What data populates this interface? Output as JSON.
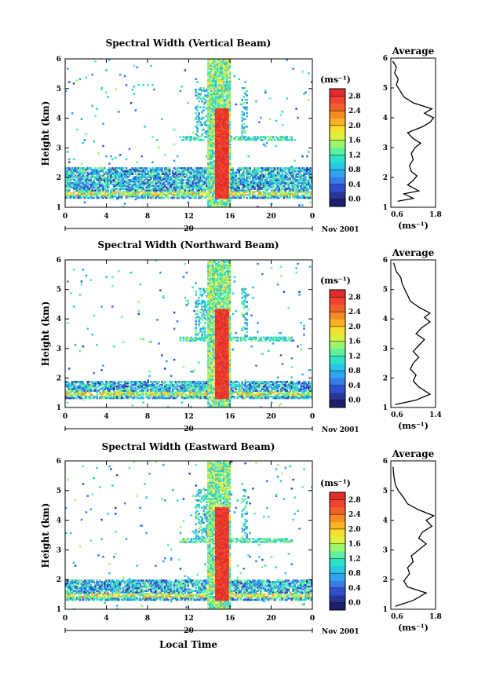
{
  "figure": {
    "xlabel": "Local Time",
    "colorbar": {
      "label": "(ms⁻¹)",
      "ticks": [
        "0.0",
        "0.4",
        "0.8",
        "1.2",
        "1.6",
        "2.0",
        "2.4",
        "2.8"
      ],
      "colors": [
        "#1b1f6e",
        "#283593",
        "#2f4fcf",
        "#3a79e8",
        "#2fa4ef",
        "#27c8e6",
        "#2fe0c8",
        "#5cf0a0",
        "#9cf56a",
        "#d8f241",
        "#f6e02b",
        "#f8b224",
        "#f68a23",
        "#f2602a",
        "#ef4231",
        "#e32c2c"
      ]
    },
    "date_label": "Nov 2001",
    "day_label": "20"
  },
  "chart_data": [
    {
      "type": "heatmap",
      "title": "Spectral Width (Vertical Beam)",
      "ylabel": "Height (km)",
      "xlabel": "",
      "x_ticks": [
        "0",
        "4",
        "8",
        "12",
        "16",
        "20",
        "0"
      ],
      "xlim": [
        0,
        24
      ],
      "y_ticks": [
        "1",
        "2",
        "3",
        "4",
        "5",
        "6"
      ],
      "ylim": [
        1,
        6
      ],
      "clim": [
        0,
        3.0
      ],
      "date_label": "Nov 2001",
      "features": {
        "low_layer": [
          1.3,
          2.3
        ],
        "mid_layer": 3.3,
        "upper_band": [
          13.7,
          16.0
        ],
        "core_band": [
          14.5,
          15.8
        ],
        "core_height": [
          1.3,
          4.3
        ]
      },
      "profile": {
        "title": "Average",
        "xlim": [
          0.6,
          1.8
        ],
        "x_ticks": [
          "0.6",
          "1.8"
        ],
        "xunit": "(ms⁻¹)",
        "points": [
          [
            0.78,
            1.2
          ],
          [
            1.2,
            1.3
          ],
          [
            0.95,
            1.45
          ],
          [
            1.35,
            1.55
          ],
          [
            1.05,
            1.75
          ],
          [
            1.2,
            1.9
          ],
          [
            1.3,
            2.05
          ],
          [
            1.15,
            2.2
          ],
          [
            1.1,
            2.4
          ],
          [
            1.2,
            2.6
          ],
          [
            1.15,
            2.8
          ],
          [
            1.25,
            3.0
          ],
          [
            1.4,
            3.15
          ],
          [
            1.2,
            3.3
          ],
          [
            1.05,
            3.5
          ],
          [
            1.45,
            3.7
          ],
          [
            1.65,
            3.85
          ],
          [
            1.75,
            4.0
          ],
          [
            1.5,
            4.15
          ],
          [
            1.7,
            4.3
          ],
          [
            1.2,
            4.5
          ],
          [
            0.95,
            4.7
          ],
          [
            0.85,
            4.9
          ],
          [
            0.75,
            5.1
          ],
          [
            0.8,
            5.3
          ],
          [
            0.7,
            5.5
          ],
          [
            0.75,
            5.7
          ],
          [
            0.65,
            5.9
          ]
        ]
      }
    },
    {
      "type": "heatmap",
      "title": "Spectral Width (Northward Beam)",
      "ylabel": "Height (km)",
      "xlabel": "",
      "x_ticks": [
        "0",
        "4",
        "8",
        "12",
        "16",
        "20",
        "0"
      ],
      "xlim": [
        0,
        24
      ],
      "y_ticks": [
        "1",
        "2",
        "3",
        "4",
        "5",
        "6"
      ],
      "ylim": [
        1,
        6
      ],
      "clim": [
        0,
        3.0
      ],
      "date_label": "Nov 2001",
      "features": {
        "low_layer": [
          1.3,
          1.9
        ],
        "mid_layer": 3.3,
        "upper_band": [
          13.7,
          16.0
        ],
        "core_band": [
          14.5,
          15.8
        ],
        "core_height": [
          1.3,
          4.3
        ]
      },
      "profile": {
        "title": "Average",
        "xlim": [
          0.6,
          1.4
        ],
        "x_ticks": [
          "0.6",
          "1.4"
        ],
        "xunit": "(ms⁻¹)",
        "points": [
          [
            0.68,
            1.1
          ],
          [
            1.05,
            1.25
          ],
          [
            1.3,
            1.45
          ],
          [
            1.1,
            1.7
          ],
          [
            1.0,
            1.9
          ],
          [
            1.05,
            2.1
          ],
          [
            0.95,
            2.3
          ],
          [
            1.0,
            2.5
          ],
          [
            1.1,
            2.7
          ],
          [
            1.0,
            2.9
          ],
          [
            1.1,
            3.1
          ],
          [
            1.2,
            3.3
          ],
          [
            1.05,
            3.5
          ],
          [
            1.15,
            3.7
          ],
          [
            1.3,
            3.9
          ],
          [
            1.2,
            4.05
          ],
          [
            1.3,
            4.2
          ],
          [
            1.1,
            4.4
          ],
          [
            0.95,
            4.6
          ],
          [
            0.9,
            4.8
          ],
          [
            0.85,
            5.0
          ],
          [
            0.8,
            5.2
          ],
          [
            0.78,
            5.4
          ],
          [
            0.7,
            5.6
          ],
          [
            0.65,
            5.9
          ]
        ]
      }
    },
    {
      "type": "heatmap",
      "title": "Spectral Width (Eastward Beam)",
      "ylabel": "Height (km)",
      "xlabel": "Local Time",
      "x_ticks": [
        "0",
        "4",
        "8",
        "12",
        "16",
        "20",
        "0"
      ],
      "xlim": [
        0,
        24
      ],
      "y_ticks": [
        "1",
        "2",
        "3",
        "4",
        "5",
        "6"
      ],
      "ylim": [
        1,
        6
      ],
      "clim": [
        0,
        3.0
      ],
      "date_label": "Nov 2001",
      "features": {
        "low_layer": [
          1.3,
          2.0
        ],
        "mid_layer": 3.3,
        "upper_band": [
          13.7,
          16.0
        ],
        "core_band": [
          14.5,
          15.8
        ],
        "core_height": [
          1.3,
          4.4
        ]
      },
      "profile": {
        "title": "Average",
        "xlim": [
          0.6,
          1.8
        ],
        "x_ticks": [
          "0.6",
          "1.8"
        ],
        "xunit": "(ms⁻¹)",
        "points": [
          [
            0.72,
            1.1
          ],
          [
            1.2,
            1.3
          ],
          [
            1.55,
            1.55
          ],
          [
            1.05,
            1.75
          ],
          [
            0.95,
            1.95
          ],
          [
            1.1,
            2.2
          ],
          [
            1.05,
            2.4
          ],
          [
            1.2,
            2.6
          ],
          [
            1.15,
            2.8
          ],
          [
            1.35,
            3.0
          ],
          [
            1.55,
            3.2
          ],
          [
            1.35,
            3.4
          ],
          [
            1.45,
            3.6
          ],
          [
            1.7,
            3.8
          ],
          [
            1.55,
            4.0
          ],
          [
            1.75,
            4.15
          ],
          [
            1.35,
            4.35
          ],
          [
            1.05,
            4.55
          ],
          [
            0.95,
            4.75
          ],
          [
            0.8,
            5.0
          ],
          [
            0.72,
            5.2
          ],
          [
            0.68,
            5.5
          ],
          [
            0.66,
            5.8
          ]
        ]
      }
    }
  ]
}
